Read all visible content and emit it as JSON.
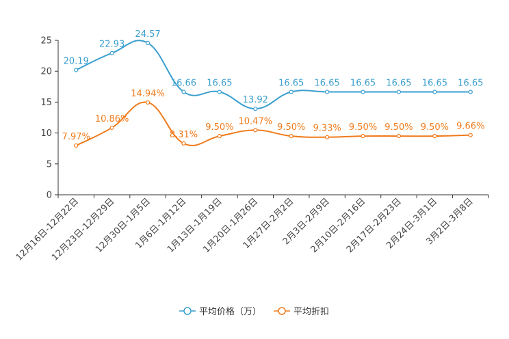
{
  "chart_data": {
    "type": "line",
    "categories": [
      "12月16日-12月22日",
      "12月23日-12月29日",
      "12月30日-1月5日",
      "1月6日-1月12日",
      "1月13日-1月19日",
      "1月20日-1月26日",
      "1月27日-2月2日",
      "2月3日-2月9日",
      "2月10日-2月16日",
      "2月17日-2月23日",
      "2月24日-3月1日",
      "3月2日-3月8日"
    ],
    "series": [
      {
        "name": "平均价格（万）",
        "color": "#3a9fcf",
        "values": [
          20.19,
          22.93,
          24.57,
          16.66,
          16.65,
          13.92,
          16.65,
          16.65,
          16.65,
          16.65,
          16.65,
          16.65
        ],
        "labels": [
          "20.19",
          "22.93",
          "24.57",
          "16.66",
          "16.65",
          "13.92",
          "16.65",
          "16.65",
          "16.65",
          "16.65",
          "16.65",
          "16.65"
        ]
      },
      {
        "name": "平均折扣",
        "color": "#f07a1a",
        "values": [
          7.97,
          10.86,
          14.94,
          8.31,
          9.5,
          10.47,
          9.5,
          9.33,
          9.5,
          9.5,
          9.5,
          9.66
        ],
        "labels": [
          "7.97%",
          "10.86%",
          "14.94%",
          "8.31%",
          "9.50%",
          "10.47%",
          "9.50%",
          "9.33%",
          "9.50%",
          "9.50%",
          "9.50%",
          "9.66%"
        ]
      }
    ],
    "yticks": [
      "0",
      "5",
      "10",
      "15",
      "20",
      "25"
    ],
    "ylim": [
      0,
      25
    ],
    "legend_position": "bottom-center"
  }
}
